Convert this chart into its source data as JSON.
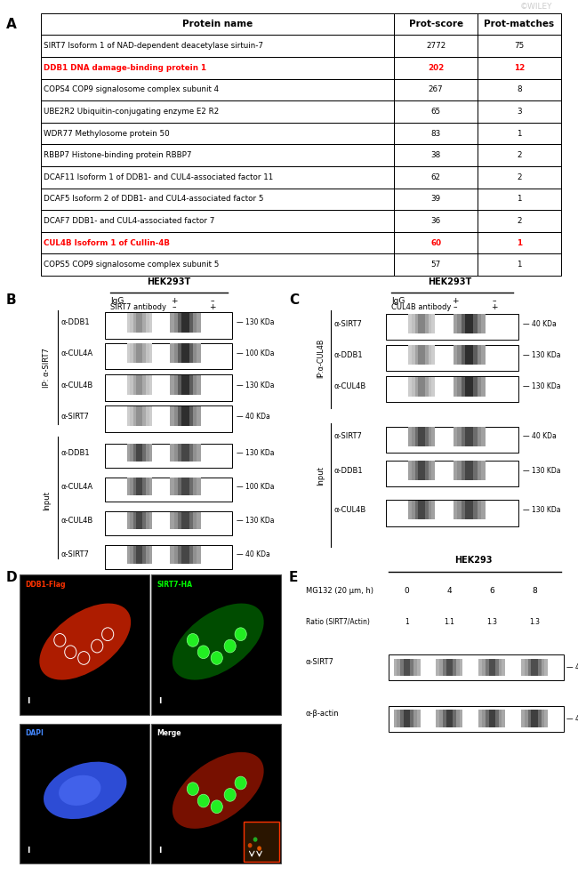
{
  "table_headers": [
    "Protein name",
    "Prot-score",
    "Prot-matches"
  ],
  "table_rows": [
    [
      "SIRT7 Isoform 1 of NAD-dependent deacetylase sirtuin-7",
      "2772",
      "75",
      "black"
    ],
    [
      "DDB1 DNA damage-binding protein 1",
      "202",
      "12",
      "red"
    ],
    [
      "COPS4 COP9 signalosome complex subunit 4",
      "267",
      "8",
      "black"
    ],
    [
      "UBE2R2 Ubiquitin-conjugating enzyme E2 R2",
      "65",
      "3",
      "black"
    ],
    [
      "WDR77 Methylosome protein 50",
      "83",
      "1",
      "black"
    ],
    [
      "RBBP7 Histone-binding protein RBBP7",
      "38",
      "2",
      "black"
    ],
    [
      "DCAF11 Isoform 1 of DDB1- and CUL4-associated factor 11",
      "62",
      "2",
      "black"
    ],
    [
      "DCAF5 Isoform 2 of DDB1- and CUL4-associated factor 5",
      "39",
      "1",
      "black"
    ],
    [
      "DCAF7 DDB1- and CUL4-associated factor 7",
      "36",
      "2",
      "black"
    ],
    [
      "CUL4B Isoform 1 of Cullin-4B",
      "60",
      "1",
      "red"
    ],
    [
      "COPS5 COP9 signalosome complex subunit 5",
      "57",
      "1",
      "black"
    ]
  ],
  "bg_color": "#ffffff"
}
